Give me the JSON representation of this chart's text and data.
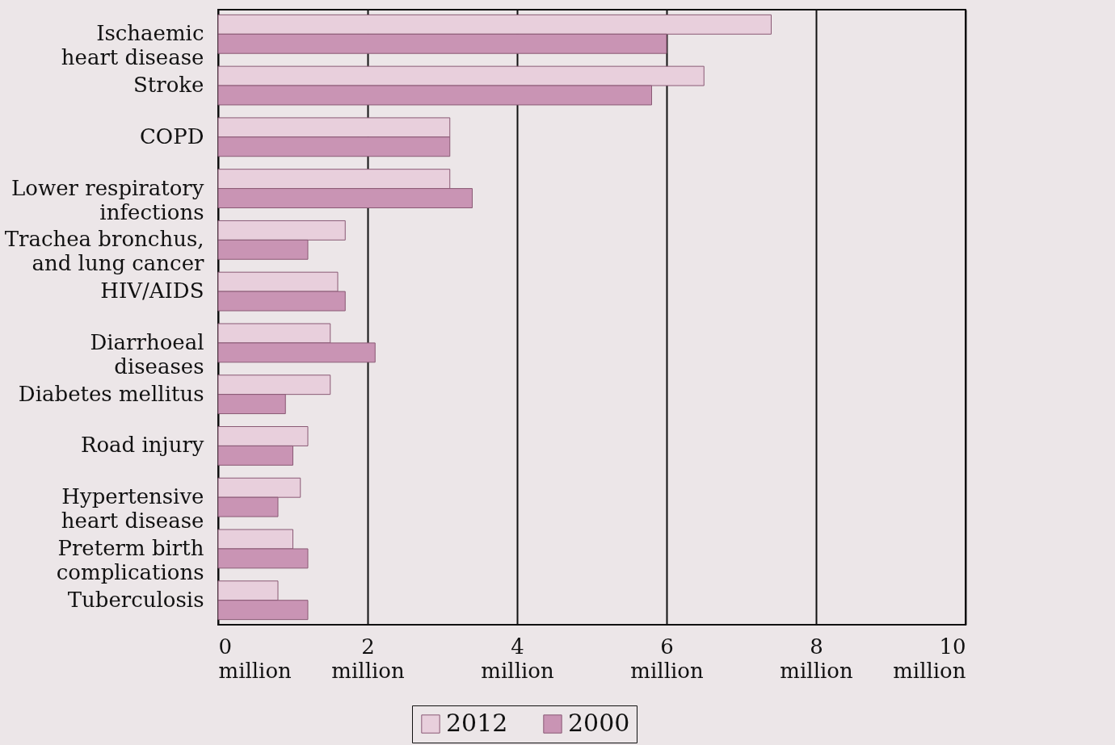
{
  "chart_data": {
    "type": "bar",
    "orientation": "horizontal",
    "categories": [
      "Ischaemic\nheart disease",
      "Stroke",
      "COPD",
      "Lower respiratory\ninfections",
      "Trachea bronchus,\nand lung cancer",
      "HIV/AIDS",
      "Diarrhoeal\ndiseases",
      "Diabetes mellitus",
      "Road injury",
      "Hypertensive\nheart disease",
      "Preterm birth\ncomplications",
      "Tuberculosis"
    ],
    "series": [
      {
        "name": "2012",
        "color": "#e8cfdc",
        "values": [
          7400000,
          6500000,
          3100000,
          3100000,
          1700000,
          1600000,
          1500000,
          1500000,
          1200000,
          1100000,
          1000000,
          800000
        ]
      },
      {
        "name": "2000",
        "color": "#c994b4",
        "values": [
          6000000,
          5800000,
          3100000,
          3400000,
          1200000,
          1700000,
          2100000,
          900000,
          1000000,
          800000,
          1200000,
          1200000
        ]
      }
    ],
    "xlim": [
      0,
      10000000
    ],
    "xticks": [
      {
        "value": 0,
        "label": "0\nmillion"
      },
      {
        "value": 2000000,
        "label": "2\nmillion"
      },
      {
        "value": 4000000,
        "label": "4\nmillion"
      },
      {
        "value": 6000000,
        "label": "6\nmillion"
      },
      {
        "value": 8000000,
        "label": "8\nmillion"
      },
      {
        "value": 10000000,
        "label": "10\nmillion"
      }
    ],
    "grid": "x",
    "legend": "bottom"
  }
}
